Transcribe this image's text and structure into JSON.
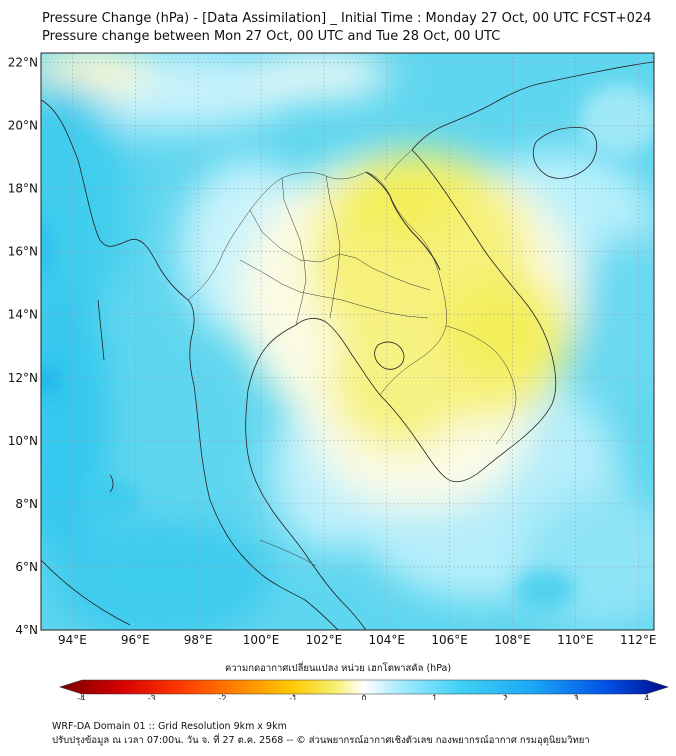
{
  "title": {
    "line1": "Pressure Change (hPa) - [Data Assimilation] _ Initial Time : Monday 27 Oct, 00 UTC FCST+024",
    "line2": "Pressure change between Mon 27 Oct, 00 UTC and Tue 28 Oct, 00 UTC"
  },
  "map": {
    "lat_labels": [
      "22°N",
      "20°N",
      "18°N",
      "16°N",
      "14°N",
      "12°N",
      "10°N",
      "8°N",
      "6°N",
      "4°N"
    ],
    "lat_values": [
      22,
      20,
      18,
      16,
      14,
      12,
      10,
      8,
      6,
      4
    ],
    "lon_labels": [
      "94°E",
      "96°E",
      "98°E",
      "100°E",
      "102°E",
      "104°E",
      "106°E",
      "108°E",
      "110°E",
      "112°E"
    ],
    "lon_values": [
      94,
      96,
      98,
      100,
      102,
      104,
      106,
      108,
      110,
      112
    ],
    "lon_range": [
      93,
      112.5
    ],
    "lat_range": [
      4,
      22.3
    ],
    "colors": {
      "positive_field": "#4fd3ee",
      "negative_field": "#f3ef5a",
      "coast": "#222222",
      "grid": "#9aa0a8"
    }
  },
  "colorbar": {
    "label": "ความกดอากาศเปลี่ยนแปลง หน่วย เฮกโตพาสคัล (hPa)",
    "ticks": [
      "-4",
      "-3",
      "-2",
      "-1",
      "0",
      "1",
      "2",
      "3",
      "4"
    ],
    "tick_values": [
      -4,
      -3,
      -2,
      -1,
      0,
      1,
      2,
      3,
      4
    ],
    "range": [
      -4.3,
      4.3
    ],
    "colors": [
      "#7a0000",
      "#d40000",
      "#ff3a00",
      "#ff8a00",
      "#ffc800",
      "#f6ee6a",
      "#ffffff",
      "#a6eaff",
      "#3fd0f4",
      "#1aa6f6",
      "#0050e6",
      "#000a8a"
    ]
  },
  "footer": {
    "line1": "WRF-DA Domain 01 :: Grid Resolution 9km x 9km",
    "line2": "ปรับปรุงข้อมูล ณ เวลา 07:00น. วัน จ. ที่ 27 ต.ค. 2568 -- © ส่วนพยากรณ์อากาศเชิงตัวเลข กองพยากรณ์อากาศ กรมอุตุนิยมวิทยา"
  }
}
